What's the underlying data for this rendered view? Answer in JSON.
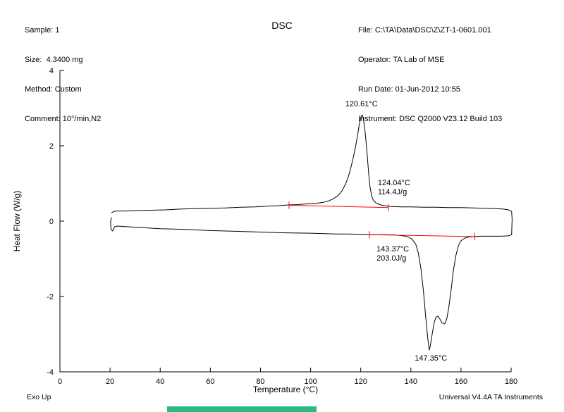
{
  "header": {
    "left": {
      "sample": "Sample: 1",
      "size": "Size:  4.3400 mg",
      "method": "Method: Custom",
      "comment": "Comment: 10°/min,N2"
    },
    "title": "DSC",
    "right": {
      "file": "File: C:\\TA\\Data\\DSC\\Z\\ZT-1-0601.001",
      "operator": "Operator: TA Lab of MSE",
      "run_date": "Run Date: 01-Jun-2012 10:55",
      "instrument": "Instrument: DSC Q2000 V23.12 Build 103"
    }
  },
  "footer": {
    "left": "Exo Up",
    "right": "Universal V4.4A TA Instruments"
  },
  "colors": {
    "curve": "#000000",
    "axis": "#000000",
    "integration": "#ff0000",
    "green_bar": "#2eb886"
  },
  "chart_data": {
    "type": "line",
    "title": "DSC",
    "xlabel": "Temperature (°C)",
    "ylabel": "Heat Flow (W/g)",
    "xlim": [
      0,
      180
    ],
    "ylim": [
      -4,
      4
    ],
    "x_ticks": [
      0,
      20,
      40,
      60,
      80,
      100,
      120,
      140,
      160,
      180
    ],
    "y_ticks": [
      4,
      2,
      0,
      -2,
      -4
    ],
    "grid": false,
    "legend": "none",
    "series": [
      {
        "name": "dsc-curve",
        "points": [
          [
            20.6,
            0.1
          ],
          [
            20.2,
            -0.02
          ],
          [
            20.4,
            -0.22
          ],
          [
            21.0,
            -0.26
          ],
          [
            21.8,
            -0.15
          ],
          [
            23,
            -0.13
          ],
          [
            25,
            -0.14
          ],
          [
            30,
            -0.16
          ],
          [
            40,
            -0.2
          ],
          [
            50,
            -0.22
          ],
          [
            60,
            -0.25
          ],
          [
            70,
            -0.27
          ],
          [
            80,
            -0.29
          ],
          [
            90,
            -0.31
          ],
          [
            100,
            -0.32
          ],
          [
            110,
            -0.34
          ],
          [
            115,
            -0.34
          ],
          [
            120,
            -0.35
          ],
          [
            125,
            -0.36
          ],
          [
            130,
            -0.36
          ],
          [
            134,
            -0.37
          ],
          [
            137,
            -0.39
          ],
          [
            139,
            -0.42
          ],
          [
            140.5,
            -0.48
          ],
          [
            142,
            -0.62
          ],
          [
            143,
            -0.85
          ],
          [
            144,
            -1.25
          ],
          [
            145,
            -1.85
          ],
          [
            146,
            -2.6
          ],
          [
            146.8,
            -3.15
          ],
          [
            147.35,
            -3.42
          ],
          [
            147.8,
            -3.3
          ],
          [
            148.5,
            -3.0
          ],
          [
            149.3,
            -2.7
          ],
          [
            150,
            -2.55
          ],
          [
            150.8,
            -2.52
          ],
          [
            151.6,
            -2.6
          ],
          [
            152.5,
            -2.7
          ],
          [
            153.5,
            -2.73
          ],
          [
            154.3,
            -2.6
          ],
          [
            155,
            -2.35
          ],
          [
            156,
            -1.85
          ],
          [
            157,
            -1.3
          ],
          [
            158,
            -0.9
          ],
          [
            159,
            -0.65
          ],
          [
            160,
            -0.52
          ],
          [
            161.5,
            -0.45
          ],
          [
            163,
            -0.42
          ],
          [
            165,
            -0.41
          ],
          [
            168,
            -0.4
          ],
          [
            172,
            -0.4
          ],
          [
            176,
            -0.4
          ],
          [
            179,
            -0.39
          ],
          [
            180.2,
            -0.36
          ],
          [
            180.4,
            0.05
          ],
          [
            180.2,
            0.26
          ],
          [
            179,
            0.3
          ],
          [
            177,
            0.32
          ],
          [
            174,
            0.33
          ],
          [
            170,
            0.34
          ],
          [
            165,
            0.35
          ],
          [
            160,
            0.36
          ],
          [
            155,
            0.36
          ],
          [
            150,
            0.37
          ],
          [
            145,
            0.37
          ],
          [
            140,
            0.38
          ],
          [
            136,
            0.38
          ],
          [
            132,
            0.39
          ],
          [
            129.5,
            0.41
          ],
          [
            127.5,
            0.44
          ],
          [
            126,
            0.49
          ],
          [
            125,
            0.56
          ],
          [
            124.3,
            0.68
          ],
          [
            123.7,
            0.92
          ],
          [
            123.2,
            1.25
          ],
          [
            122.7,
            1.65
          ],
          [
            122.2,
            2.05
          ],
          [
            121.7,
            2.4
          ],
          [
            121.2,
            2.65
          ],
          [
            120.9,
            2.76
          ],
          [
            120.61,
            2.82
          ],
          [
            120.3,
            2.8
          ],
          [
            119.9,
            2.72
          ],
          [
            119.4,
            2.55
          ],
          [
            118.8,
            2.3
          ],
          [
            118,
            2.0
          ],
          [
            117,
            1.68
          ],
          [
            116,
            1.4
          ],
          [
            115,
            1.17
          ],
          [
            114,
            0.99
          ],
          [
            112.5,
            0.8
          ],
          [
            111,
            0.68
          ],
          [
            109,
            0.59
          ],
          [
            107,
            0.53
          ],
          [
            105,
            0.5
          ],
          [
            102,
            0.47
          ],
          [
            99,
            0.46
          ],
          [
            95,
            0.44
          ],
          [
            91,
            0.43
          ],
          [
            87,
            0.41
          ],
          [
            83,
            0.4
          ],
          [
            78,
            0.38
          ],
          [
            72,
            0.37
          ],
          [
            66,
            0.35
          ],
          [
            60,
            0.34
          ],
          [
            54,
            0.33
          ],
          [
            48,
            0.32
          ],
          [
            42,
            0.3
          ],
          [
            36,
            0.29
          ],
          [
            30,
            0.28
          ],
          [
            26,
            0.27
          ],
          [
            23,
            0.27
          ],
          [
            21.5,
            0.26
          ],
          [
            20.6,
            0.22
          ]
        ]
      }
    ],
    "integrations": [
      {
        "name": "crystallization-baseline",
        "x1": 91.4,
        "y1": 0.42,
        "x2": 131.0,
        "y2": 0.36
      },
      {
        "name": "melting-baseline",
        "x1": 123.5,
        "y1": -0.36,
        "x2": 165.5,
        "y2": -0.41
      }
    ],
    "annotations": [
      {
        "name": "crystallization-peak-label",
        "lines": [
          "120.61°C"
        ],
        "x": 120.3,
        "y": 3.05,
        "anchor": "middle"
      },
      {
        "name": "crystallization-enthalpy-label",
        "lines": [
          "124.04°C",
          "114.4J/g"
        ],
        "x": 126.8,
        "y": 0.95,
        "anchor": "start"
      },
      {
        "name": "melting-enthalpy-label",
        "lines": [
          "143.37°C",
          "203.0J/g"
        ],
        "x": 126.3,
        "y": -0.8,
        "anchor": "start"
      },
      {
        "name": "melting-peak-label",
        "lines": [
          "147.35°C"
        ],
        "x": 148.0,
        "y": -3.7,
        "anchor": "middle"
      }
    ]
  }
}
